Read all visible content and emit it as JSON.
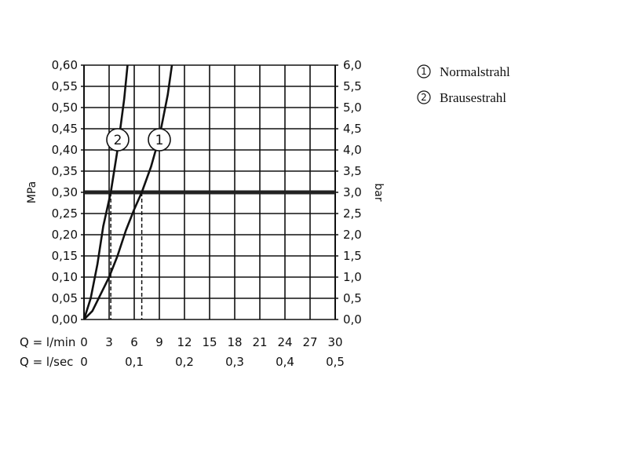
{
  "chart_data": {
    "type": "line",
    "ylabel_left": "MPa",
    "ylabel_right": "bar",
    "xlabel_lmin": "Q = l/min",
    "xlabel_lsec": "Q = l/sec",
    "x_ticks_lmin": [
      "0",
      "3",
      "6",
      "9",
      "12",
      "15",
      "18",
      "21",
      "24",
      "27",
      "30"
    ],
    "x_ticks_lsec": [
      "0",
      "0,1",
      "0,2",
      "0,3",
      "0,4",
      "0,5"
    ],
    "y_ticks_left": [
      "0,00",
      "0,05",
      "0,10",
      "0,15",
      "0,20",
      "0,25",
      "0,30",
      "0,35",
      "0,40",
      "0,45",
      "0,50",
      "0,55",
      "0,60"
    ],
    "y_ticks_right": [
      "0,0",
      "0,5",
      "1,0",
      "1,5",
      "2,0",
      "2,5",
      "3,0",
      "3,5",
      "4,0",
      "4,5",
      "5,0",
      "5,5",
      "6,0"
    ],
    "xlim": [
      0,
      30
    ],
    "ylim": [
      0,
      0.6
    ],
    "grid": true,
    "reference_line": {
      "y": 0.3
    },
    "series": [
      {
        "name": "Normalstrahl",
        "marker": "1",
        "x": [
          0,
          1,
          2,
          3,
          4,
          5,
          6,
          6.9,
          8,
          9,
          10,
          10.5
        ],
        "y": [
          0,
          0.02,
          0.06,
          0.1,
          0.15,
          0.21,
          0.26,
          0.3,
          0.36,
          0.43,
          0.53,
          0.6
        ]
      },
      {
        "name": "Brausestrahl",
        "marker": "2",
        "x": [
          0,
          0.8,
          1.6,
          2.3,
          3.2,
          4,
          4.8,
          5.2
        ],
        "y": [
          0,
          0.05,
          0.13,
          0.22,
          0.3,
          0.4,
          0.52,
          0.6
        ]
      }
    ],
    "dashed_drops": [
      {
        "series": "Brausestrahl",
        "x": 3.2,
        "y": 0.3
      },
      {
        "series": "Normalstrahl",
        "x": 6.9,
        "y": 0.3
      }
    ],
    "legend": [
      {
        "marker": "1",
        "label": "Normalstrahl"
      },
      {
        "marker": "2",
        "label": "Brausestrahl"
      }
    ],
    "legend_position": "top-right"
  }
}
